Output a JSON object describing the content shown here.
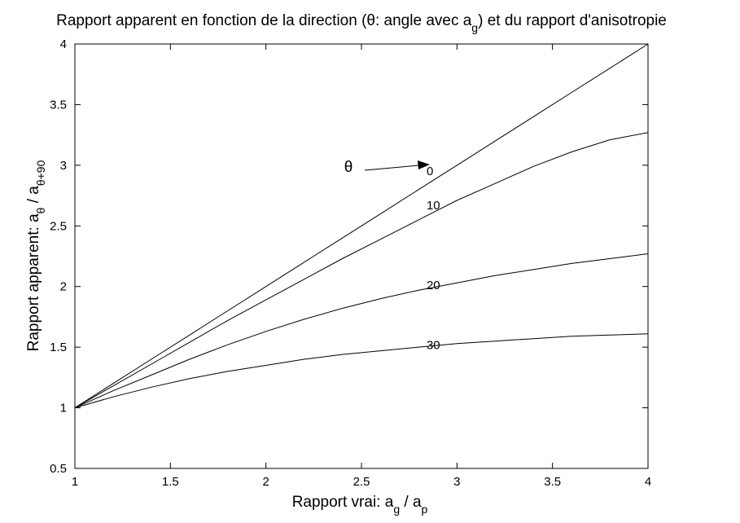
{
  "chart_data": {
    "type": "line",
    "title": {
      "main": "Rapport apparent en fonction de la direction (θ: angle avec a",
      "sub": "g",
      "end": ") et du rapport d'anisotropie"
    },
    "xlabel": {
      "main": "Rapport vrai: a",
      "sub1": "g",
      "mid": " / a",
      "sub2": "p"
    },
    "ylabel": {
      "main": "Rapport apparent: a",
      "sub1": "θ",
      "mid": " / a",
      "sub2": "θ+90"
    },
    "xlim": [
      1,
      4
    ],
    "ylim": [
      0.5,
      4
    ],
    "xticks": [
      "1",
      "1.5",
      "2",
      "2.5",
      "3",
      "3.5",
      "4"
    ],
    "yticks": [
      "0.5",
      "1",
      "1.5",
      "2",
      "2.5",
      "3",
      "3.5",
      "4"
    ],
    "grid": false,
    "legend": "none",
    "x": [
      1.0,
      1.2,
      1.4,
      1.6,
      1.8,
      2.0,
      2.2,
      2.4,
      2.6,
      2.8,
      3.0,
      3.2,
      3.4,
      3.6,
      3.8,
      4.0
    ],
    "series": [
      {
        "label": "0",
        "values": [
          1.0,
          1.2,
          1.4,
          1.6,
          1.8,
          2.0,
          2.2,
          2.4,
          2.6,
          2.8,
          3.0,
          3.2,
          3.4,
          3.6,
          3.8,
          4.0
        ]
      },
      {
        "label": "10",
        "values": [
          1.0,
          1.18,
          1.36,
          1.54,
          1.72,
          1.89,
          2.06,
          2.23,
          2.39,
          2.55,
          2.71,
          2.85,
          2.99,
          3.11,
          3.21,
          3.27
        ]
      },
      {
        "label": "20",
        "values": [
          1.0,
          1.14,
          1.27,
          1.4,
          1.52,
          1.63,
          1.73,
          1.82,
          1.9,
          1.97,
          2.03,
          2.09,
          2.14,
          2.19,
          2.23,
          2.27
        ]
      },
      {
        "label": "30",
        "values": [
          1.0,
          1.09,
          1.17,
          1.24,
          1.3,
          1.35,
          1.4,
          1.44,
          1.47,
          1.5,
          1.53,
          1.55,
          1.57,
          1.59,
          1.6,
          1.61
        ]
      }
    ],
    "annotation": {
      "text": "θ",
      "points_to_series": "0"
    }
  }
}
